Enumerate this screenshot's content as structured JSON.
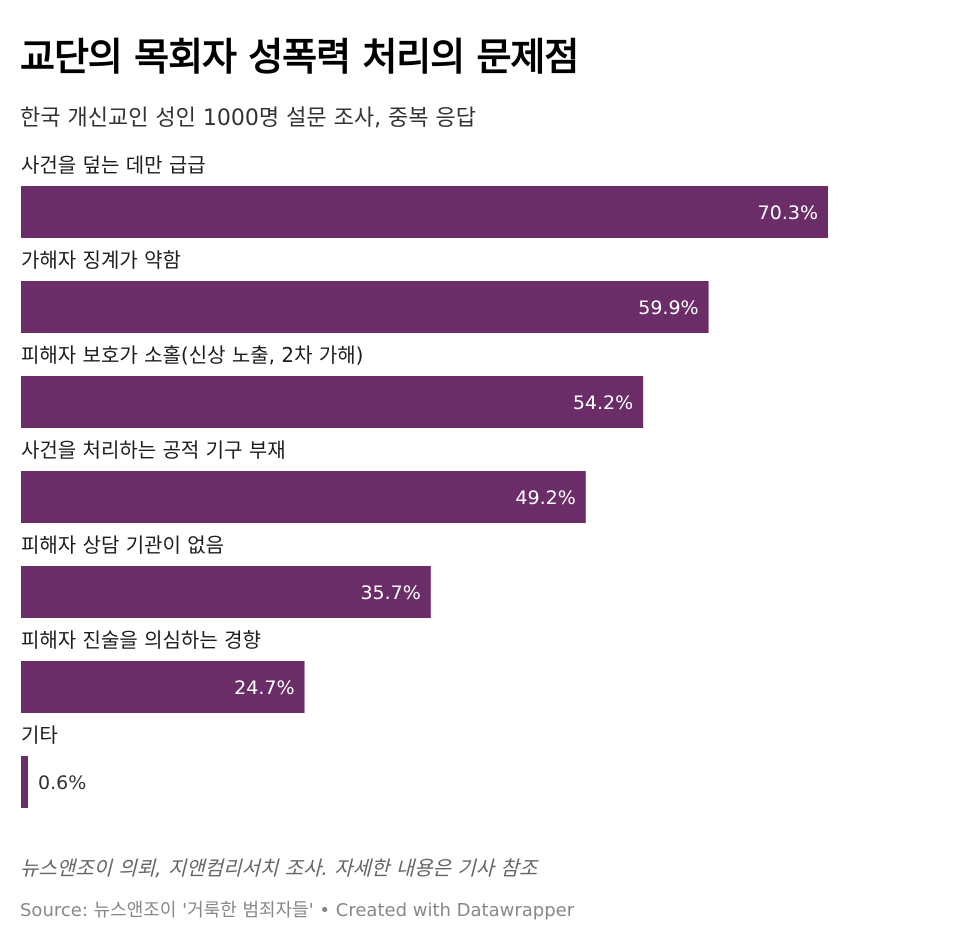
{
  "header": {
    "title": "교단의 목회자 성폭력 처리의 문제점",
    "subtitle": "한국 개신교인 성인 1000명 설문 조사, 중복 응답"
  },
  "footer": {
    "note": "뉴스앤조이 의뢰, 지앤컴리서치 조사. 자세한 내용은 기사 참조",
    "source_label": "Source:",
    "source_text": "뉴스앤조이 '거룩한 범죄자들'",
    "separator": "•",
    "credit": "Created with Datawrapper"
  },
  "colors": {
    "bar": "#6b2d67",
    "label_inside": "#ffffff",
    "label_outside": "#333333",
    "category_text": "#1d1d1d"
  },
  "chart_data": {
    "type": "bar",
    "orientation": "horizontal",
    "categories": [
      "사건을 덮는 데만 급급",
      "가해자 징계가 약함",
      "피해자 보호가 소홀(신상 노출, 2차 가해)",
      "사건을 처리하는 공적 기구 부재",
      "피해자 상담 기관이 없음",
      "피해자 진술을 의심하는 경향",
      "기타"
    ],
    "values": [
      70.3,
      59.9,
      54.2,
      49.2,
      35.7,
      24.7,
      0.6
    ],
    "value_labels": [
      "70.3%",
      "59.9%",
      "54.2%",
      "49.2%",
      "35.7%",
      "24.7%",
      "0.6%"
    ],
    "unit": "%",
    "xlim": [
      0,
      70.3
    ],
    "title": "교단의 목회자 성폭력 처리의 문제점",
    "subtitle": "한국 개신교인 성인 1000명 설문 조사, 중복 응답",
    "grid": false,
    "legend": "none"
  }
}
